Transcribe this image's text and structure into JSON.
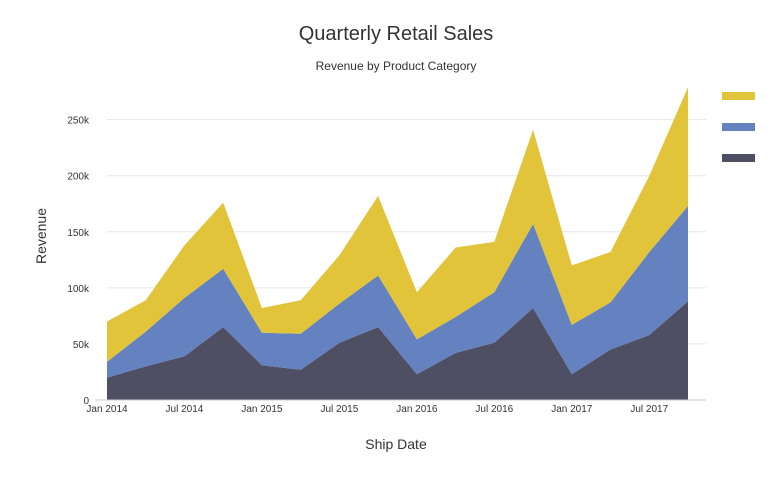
{
  "chart_data": {
    "type": "area",
    "stacked": true,
    "title": "Quarterly Retail Sales",
    "subtitle": "Revenue by Product Category",
    "xlabel": "Ship Date",
    "ylabel": "Revenue",
    "x": [
      "2014-01",
      "2014-04",
      "2014-07",
      "2014-10",
      "2015-01",
      "2015-04",
      "2015-07",
      "2015-10",
      "2016-01",
      "2016-04",
      "2016-07",
      "2016-10",
      "2017-01",
      "2017-04",
      "2017-07",
      "2017-10"
    ],
    "x_ticks": [
      {
        "value": "2014-01",
        "label": "Jan 2014"
      },
      {
        "value": "2014-07",
        "label": "Jul 2014"
      },
      {
        "value": "2015-01",
        "label": "Jan 2015"
      },
      {
        "value": "2015-07",
        "label": "Jul 2015"
      },
      {
        "value": "2016-01",
        "label": "Jan 2016"
      },
      {
        "value": "2016-07",
        "label": "Jul 2016"
      },
      {
        "value": "2017-01",
        "label": "Jan 2017"
      },
      {
        "value": "2017-07",
        "label": "Jul 2017"
      }
    ],
    "y_ticks": [
      {
        "value": 0,
        "label": "0"
      },
      {
        "value": 50000,
        "label": "50k"
      },
      {
        "value": 100000,
        "label": "100k"
      },
      {
        "value": 150000,
        "label": "150k"
      },
      {
        "value": 200000,
        "label": "200k"
      },
      {
        "value": 250000,
        "label": "250k"
      }
    ],
    "ylim": [
      0,
      280000
    ],
    "grid": true,
    "legend_placement": "top-right",
    "series": [
      {
        "color": "#4f4f63",
        "values": [
          20000,
          30000,
          39000,
          65000,
          31000,
          27000,
          51000,
          65000,
          23000,
          42000,
          51000,
          82000,
          23000,
          45000,
          58000,
          88000
        ]
      },
      {
        "color": "#6482c0",
        "values": [
          14000,
          31000,
          52000,
          52000,
          29000,
          32000,
          35000,
          46000,
          31000,
          32000,
          45000,
          75000,
          44000,
          42000,
          74000,
          85000
        ]
      },
      {
        "color": "#e2c43a",
        "values": [
          36000,
          28000,
          47000,
          59000,
          22000,
          30000,
          43000,
          71000,
          42000,
          62000,
          45000,
          84000,
          53000,
          45000,
          68000,
          106000
        ]
      }
    ]
  }
}
